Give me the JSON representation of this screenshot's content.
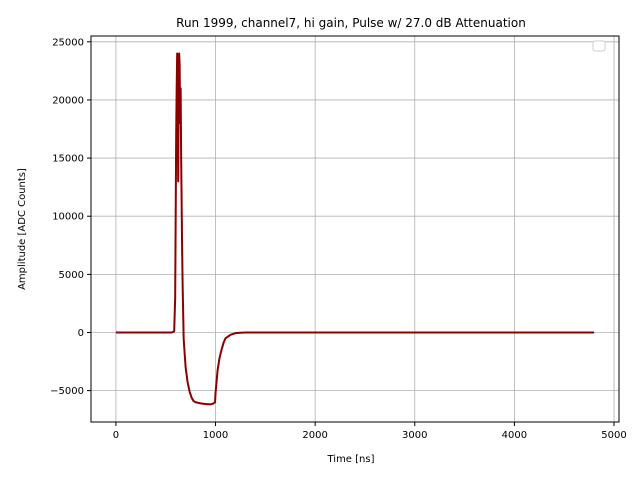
{
  "chart_data": {
    "type": "line",
    "title": "Run 1999, channel7, hi gain, Pulse w/ 27.0 dB Attenuation",
    "xlabel": "Time [ns]",
    "ylabel": "Amplitude [ADC Counts]",
    "xlim": [
      -250,
      5050
    ],
    "ylim": [
      -7700,
      25500
    ],
    "xticks": [
      0,
      1000,
      2000,
      3000,
      4000,
      5000
    ],
    "xtick_labels": [
      "0",
      "1000",
      "2000",
      "3000",
      "4000",
      "5000"
    ],
    "yticks": [
      -5000,
      0,
      5000,
      10000,
      15000,
      20000,
      25000
    ],
    "ytick_labels": [
      "−5000",
      "0",
      "5000",
      "10000",
      "15000",
      "20000",
      "25000"
    ],
    "grid": true,
    "legend": "top-right, empty",
    "line_color": "#8b0000",
    "series": [
      {
        "x": [
          0,
          100,
          200,
          300,
          400,
          500,
          560,
          585,
          595,
          600,
          605,
          610,
          615,
          620,
          625,
          630,
          635,
          640,
          645,
          650,
          655,
          660,
          665,
          670,
          680,
          690,
          700,
          720,
          740,
          760,
          780,
          800,
          850,
          900,
          950,
          980,
          995,
          1000,
          1010,
          1020,
          1040,
          1060,
          1080,
          1100,
          1150,
          1200,
          1250,
          1300,
          1400,
          1500,
          2000,
          2500,
          3000,
          3500,
          4000,
          4500,
          4800
        ],
        "y": [
          0,
          0,
          0,
          0,
          0,
          0,
          0,
          100,
          3000,
          10000,
          17000,
          21000,
          24000,
          21000,
          13000,
          20000,
          24000,
          23000,
          18000,
          21000,
          15000,
          11000,
          7000,
          4000,
          -500,
          -1800,
          -3000,
          -4300,
          -5100,
          -5600,
          -5900,
          -6000,
          -6100,
          -6150,
          -6180,
          -6100,
          -6000,
          -5200,
          -4300,
          -3300,
          -2200,
          -1500,
          -900,
          -500,
          -200,
          -60,
          -20,
          0,
          0,
          0,
          0,
          0,
          0,
          0,
          0,
          0,
          0
        ]
      }
    ]
  }
}
